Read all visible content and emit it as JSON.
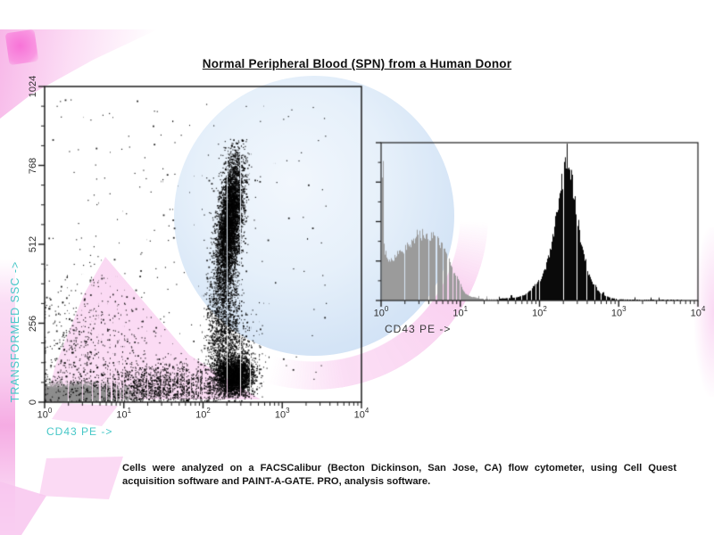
{
  "figure": {
    "title": "Normal Peripheral Blood (SPN) from a Human Donor",
    "caption": "Cells were analyzed on a FACSCalibur (Becton Dickinson, San Jose, CA) flow cytometer, using Cell Quest acquisition software and PAINT-A-GATE. PRO, analysis software."
  },
  "colors": {
    "scatter_axis_label_teal": "#45c7c7",
    "hist_axis_label_gray": "#3a3a3a",
    "tick_text": "#2e2e2e",
    "frame": "#1c1c1c",
    "dot_black": "#000000",
    "dot_gray": "#8f8f8f",
    "hist_gray": "#9b9b9b",
    "hist_black": "#0a0a0a",
    "watermark_magenta": "#f75fd2",
    "watermark_pink": "#f7b9e8",
    "watermark_blue": "#cfe1f4"
  },
  "chart_data": [
    {
      "type": "scatter",
      "name": "dot-plot",
      "xlabel": "CD43 PE ->",
      "ylabel": "TRANSFORMED SSC ->",
      "x_scale": "log",
      "x_decades": [
        0,
        4
      ],
      "x_tick_labels": [
        "10^0",
        "10^1",
        "10^2",
        "10^3",
        "10^4"
      ],
      "x_minor_ticks": "log positions 2-9 per decade",
      "y_ticks": [
        "0",
        "256",
        "512",
        "768",
        "1024"
      ],
      "ylim": [
        0,
        1024
      ],
      "y_minor_step": 64,
      "grid": false,
      "populations": [
        {
          "name": "debris-gray",
          "color": "#8f8f8f",
          "n": 6500,
          "x": {
            "dist": "normal",
            "mean": 0.35,
            "sd": 0.33,
            "min": 0.0,
            "max": 1.5
          },
          "y": {
            "dist": "normal",
            "mean": 18,
            "sd": 17,
            "min": 1,
            "max": 90
          }
        },
        {
          "name": "debris-gray-axis-pileup",
          "color": "#8f8f8f",
          "n": 600,
          "x": {
            "dist": "uniform",
            "min": 0,
            "max": 0.025
          },
          "y": {
            "dist": "normal",
            "mean": 20,
            "sd": 15,
            "min": 1,
            "max": 70
          }
        },
        {
          "name": "lymphocytes-black",
          "color": "#000000",
          "n": 3200,
          "x": {
            "dist": "normal",
            "mean": 2.38,
            "sd": 0.12,
            "min": 2.0,
            "max": 2.95
          },
          "y": {
            "dist": "normal",
            "mean": 80,
            "sd": 30,
            "min": 12,
            "max": 185
          }
        },
        {
          "name": "granulocytes-black",
          "color": "#000000",
          "n": 5000,
          "tilt": 0.00035,
          "x": {
            "dist": "normal",
            "mean": 2.33,
            "sd": 0.075,
            "min": 2.0,
            "max": 2.75
          },
          "y": {
            "dist": "normal",
            "mean": 575,
            "sd": 110,
            "min": 255,
            "max": 850
          }
        },
        {
          "name": "granulocyte-tail-black",
          "color": "#000000",
          "n": 1000,
          "x": {
            "dist": "normal",
            "mean": 2.26,
            "sd": 0.11,
            "min": 1.9,
            "max": 2.6
          },
          "y": {
            "dist": "normal",
            "mean": 270,
            "sd": 95,
            "min": 90,
            "max": 460
          }
        },
        {
          "name": "monocyte-bridge-black",
          "color": "#000000",
          "n": 550,
          "x": {
            "dist": "normal",
            "mean": 2.33,
            "sd": 0.16,
            "min": 1.8,
            "max": 2.9
          },
          "y": {
            "dist": "normal",
            "mean": 170,
            "sd": 60,
            "min": 40,
            "max": 320
          }
        },
        {
          "name": "bottom-band-black",
          "color": "#000000",
          "n": 1400,
          "x": {
            "dist": "normal",
            "mean": 1.55,
            "sd": 0.45,
            "min": 0.3,
            "max": 2.6
          },
          "y": {
            "dist": "normal",
            "mean": 45,
            "sd": 38,
            "min": 1,
            "max": 160
          }
        },
        {
          "name": "left-scatter-black",
          "color": "#000000",
          "n": 700,
          "x": {
            "dist": "normal",
            "mean": 0.45,
            "sd": 0.5,
            "min": 0,
            "max": 1.9
          },
          "y": {
            "dist": "normal",
            "mean": 140,
            "sd": 130,
            "min": 1,
            "max": 560
          }
        },
        {
          "name": "sparse-noise-black",
          "color": "#000000",
          "n": 220,
          "x": {
            "dist": "uniform",
            "min": 0,
            "max": 3.6
          },
          "y": {
            "dist": "uniform",
            "min": 2,
            "max": 990
          }
        }
      ]
    },
    {
      "type": "histogram",
      "name": "cd43-histogram",
      "xlabel": "CD43 PE ->",
      "ylabel": "",
      "x_scale": "log",
      "x_decades": [
        0,
        4
      ],
      "x_tick_labels": [
        "10^0",
        "10^1",
        "10^2",
        "10^3",
        "10^4"
      ],
      "x_minor_ticks": "log positions 2-9 per decade",
      "y_axis": "unlabeled linear counts, major ticks at 0/25/50/75/100 %",
      "grid": false,
      "series": [
        {
          "name": "CD43-negative population (gray)",
          "color": "#9b9b9b",
          "peak_log_x": 0.6,
          "peak_height_frac": 0.42,
          "envelope": [
            [
              0,
              0.85
            ],
            [
              0.022,
              0.85
            ],
            [
              0.035,
              0.32
            ],
            [
              0.08,
              0.26
            ],
            [
              0.15,
              0.26
            ],
            [
              0.22,
              0.3
            ],
            [
              0.3,
              0.33
            ],
            [
              0.38,
              0.36
            ],
            [
              0.45,
              0.4
            ],
            [
              0.52,
              0.42
            ],
            [
              0.58,
              0.4
            ],
            [
              0.65,
              0.42
            ],
            [
              0.7,
              0.38
            ],
            [
              0.78,
              0.34
            ],
            [
              0.85,
              0.26
            ],
            [
              0.92,
              0.18
            ],
            [
              1.0,
              0.1
            ],
            [
              1.05,
              0.05
            ],
            [
              1.12,
              0.025
            ],
            [
              1.25,
              0.012
            ],
            [
              1.45,
              0.008
            ],
            [
              1.6,
              0.005
            ],
            [
              1.72,
              0.0
            ]
          ]
        },
        {
          "name": "CD43-positive population (black)",
          "color": "#0a0a0a",
          "peak_log_x": 2.34,
          "peak_height_frac": 0.92,
          "envelope": [
            [
              1.45,
              0.0
            ],
            [
              1.5,
              0.012
            ],
            [
              1.6,
              0.015
            ],
            [
              1.7,
              0.02
            ],
            [
              1.78,
              0.03
            ],
            [
              1.85,
              0.05
            ],
            [
              1.9,
              0.08
            ],
            [
              1.95,
              0.1
            ],
            [
              2.0,
              0.13
            ],
            [
              2.04,
              0.16
            ],
            [
              2.08,
              0.22
            ],
            [
              2.12,
              0.3
            ],
            [
              2.16,
              0.38
            ],
            [
              2.2,
              0.5
            ],
            [
              2.24,
              0.62
            ],
            [
              2.28,
              0.75
            ],
            [
              2.32,
              0.88
            ],
            [
              2.34,
              0.92
            ],
            [
              2.37,
              0.86
            ],
            [
              2.4,
              0.78
            ],
            [
              2.44,
              0.64
            ],
            [
              2.48,
              0.5
            ],
            [
              2.52,
              0.38
            ],
            [
              2.56,
              0.27
            ],
            [
              2.6,
              0.19
            ],
            [
              2.65,
              0.12
            ],
            [
              2.7,
              0.08
            ],
            [
              2.76,
              0.05
            ],
            [
              2.82,
              0.03
            ],
            [
              2.9,
              0.015
            ],
            [
              3.0,
              0.008
            ],
            [
              3.15,
              0.005
            ],
            [
              3.4,
              0.004
            ],
            [
              3.6,
              0.003
            ],
            [
              3.8,
              0.002
            ],
            [
              4.0,
              0.002
            ]
          ]
        }
      ]
    }
  ]
}
